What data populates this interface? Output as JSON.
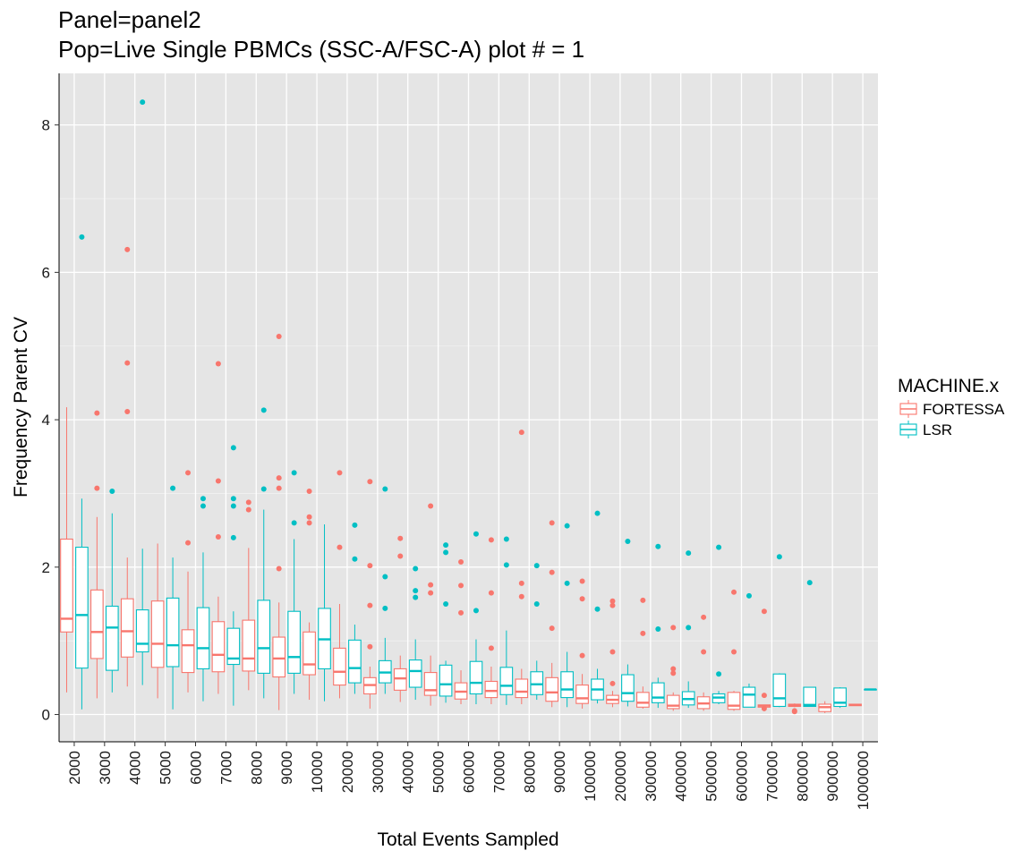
{
  "chart_data": {
    "type": "box",
    "title": "Panel=panel2",
    "subtitle": "Pop=Live Single PBMCs (SSC-A/FSC-A) plot # = 1",
    "xlabel": "Total Events Sampled",
    "ylabel": "Frequency Parent CV",
    "ylim": [
      -0.37,
      8.7
    ],
    "yticks": [
      0,
      2,
      4,
      6,
      8
    ],
    "grid": true,
    "legend": {
      "title": "MACHINE.x",
      "position": "right"
    },
    "categories": [
      "2000",
      "3000",
      "4000",
      "5000",
      "6000",
      "7000",
      "8000",
      "9000",
      "10000",
      "20000",
      "30000",
      "40000",
      "50000",
      "60000",
      "70000",
      "80000",
      "90000",
      "100000",
      "200000",
      "300000",
      "400000",
      "500000",
      "600000",
      "700000",
      "800000",
      "900000",
      "1000000"
    ],
    "series": [
      {
        "name": "FORTESSA",
        "color": "#F8766D",
        "boxes": [
          {
            "min": 0.3,
            "q1": 1.12,
            "median": 1.3,
            "q3": 2.38,
            "max": 4.17,
            "outliers": []
          },
          {
            "min": 0.22,
            "q1": 0.76,
            "median": 1.12,
            "q3": 1.69,
            "max": 2.68,
            "outliers": [
              3.07,
              4.09
            ]
          },
          {
            "min": 0.38,
            "q1": 0.78,
            "median": 1.13,
            "q3": 1.57,
            "max": 2.13,
            "outliers": [
              4.11,
              4.77,
              6.31
            ]
          },
          {
            "min": 0.22,
            "q1": 0.64,
            "median": 0.96,
            "q3": 1.54,
            "max": 2.32,
            "outliers": []
          },
          {
            "min": 0.3,
            "q1": 0.57,
            "median": 0.94,
            "q3": 1.15,
            "max": 1.94,
            "outliers": [
              2.33,
              3.28
            ]
          },
          {
            "min": 0.28,
            "q1": 0.58,
            "median": 0.81,
            "q3": 1.26,
            "max": 1.6,
            "outliers": [
              2.41,
              3.17,
              4.76
            ]
          },
          {
            "min": 0.33,
            "q1": 0.59,
            "median": 0.76,
            "q3": 1.28,
            "max": 2.26,
            "outliers": [
              2.78,
              2.88
            ]
          },
          {
            "min": 0.06,
            "q1": 0.51,
            "median": 0.76,
            "q3": 1.05,
            "max": 1.52,
            "outliers": [
              1.98,
              3.07,
              3.21,
              5.13
            ]
          },
          {
            "min": 0.2,
            "q1": 0.54,
            "median": 0.68,
            "q3": 1.12,
            "max": 1.25,
            "outliers": [
              2.6,
              2.68,
              3.03
            ]
          },
          {
            "min": 0.22,
            "q1": 0.4,
            "median": 0.58,
            "q3": 0.9,
            "max": 1.5,
            "outliers": [
              2.27,
              3.28
            ]
          },
          {
            "min": 0.08,
            "q1": 0.28,
            "median": 0.4,
            "q3": 0.5,
            "max": 0.65,
            "outliers": [
              0.92,
              1.48,
              2.02,
              3.16
            ]
          },
          {
            "min": 0.17,
            "q1": 0.33,
            "median": 0.49,
            "q3": 0.62,
            "max": 0.8,
            "outliers": [
              2.15,
              2.39
            ]
          },
          {
            "min": 0.12,
            "q1": 0.26,
            "median": 0.33,
            "q3": 0.57,
            "max": 0.8,
            "outliers": [
              1.65,
              1.76,
              2.83
            ]
          },
          {
            "min": 0.14,
            "q1": 0.21,
            "median": 0.31,
            "q3": 0.43,
            "max": 0.6,
            "outliers": [
              1.38,
              1.75,
              2.07
            ]
          },
          {
            "min": 0.14,
            "q1": 0.23,
            "median": 0.32,
            "q3": 0.45,
            "max": 0.65,
            "outliers": [
              0.9,
              1.65,
              2.37
            ]
          },
          {
            "min": 0.14,
            "q1": 0.23,
            "median": 0.31,
            "q3": 0.48,
            "max": 0.62,
            "outliers": [
              1.6,
              1.78,
              3.83
            ]
          },
          {
            "min": 0.1,
            "q1": 0.18,
            "median": 0.3,
            "q3": 0.5,
            "max": 0.7,
            "outliers": [
              1.17,
              1.93,
              2.6
            ]
          },
          {
            "min": 0.08,
            "q1": 0.15,
            "median": 0.22,
            "q3": 0.4,
            "max": 0.55,
            "outliers": [
              0.8,
              1.57,
              1.81
            ]
          },
          {
            "min": 0.1,
            "q1": 0.15,
            "median": 0.2,
            "q3": 0.26,
            "max": 0.32,
            "outliers": [
              0.42,
              0.85,
              1.48,
              1.54
            ]
          },
          {
            "min": 0.08,
            "q1": 0.1,
            "median": 0.16,
            "q3": 0.3,
            "max": 0.38,
            "outliers": [
              1.1,
              1.55
            ]
          },
          {
            "min": 0.05,
            "q1": 0.08,
            "median": 0.12,
            "q3": 0.26,
            "max": 0.3,
            "outliers": [
              0.56,
              0.62,
              1.18
            ]
          },
          {
            "min": 0.05,
            "q1": 0.08,
            "median": 0.15,
            "q3": 0.24,
            "max": 0.3,
            "outliers": [
              0.85,
              1.32
            ]
          },
          {
            "min": 0.05,
            "q1": 0.07,
            "median": 0.12,
            "q3": 0.3,
            "max": 0.32,
            "outliers": [
              0.85,
              1.66
            ]
          },
          {
            "min": 0.08,
            "q1": 0.1,
            "median": 0.12,
            "q3": 0.13,
            "max": 0.13,
            "outliers": [
              0.08,
              0.26,
              1.4
            ]
          },
          {
            "min": 0.1,
            "q1": 0.11,
            "median": 0.12,
            "q3": 0.14,
            "max": 0.15,
            "outliers": [
              0.04,
              0.05
            ]
          },
          {
            "min": 0.02,
            "q1": 0.04,
            "median": 0.1,
            "q3": 0.14,
            "max": 0.18,
            "outliers": []
          },
          {
            "min": 0.12,
            "q1": 0.12,
            "median": 0.13,
            "q3": 0.14,
            "max": 0.14,
            "outliers": []
          }
        ]
      },
      {
        "name": "LSR",
        "color": "#00BFC4",
        "boxes": [
          {
            "min": 0.07,
            "q1": 0.63,
            "median": 1.35,
            "q3": 2.27,
            "max": 2.93,
            "outliers": [
              6.48
            ]
          },
          {
            "min": 0.3,
            "q1": 0.6,
            "median": 1.18,
            "q3": 1.47,
            "max": 2.73,
            "outliers": [
              3.03
            ]
          },
          {
            "min": 0.4,
            "q1": 0.85,
            "median": 0.96,
            "q3": 1.42,
            "max": 2.25,
            "outliers": [
              8.31
            ]
          },
          {
            "min": 0.07,
            "q1": 0.65,
            "median": 0.94,
            "q3": 1.58,
            "max": 2.13,
            "outliers": [
              3.07
            ]
          },
          {
            "min": 0.18,
            "q1": 0.62,
            "median": 0.9,
            "q3": 1.45,
            "max": 2.2,
            "outliers": [
              2.83,
              2.93
            ]
          },
          {
            "min": 0.12,
            "q1": 0.68,
            "median": 0.76,
            "q3": 1.17,
            "max": 1.4,
            "outliers": [
              2.4,
              2.83,
              2.93,
              3.62
            ]
          },
          {
            "min": 0.22,
            "q1": 0.56,
            "median": 0.9,
            "q3": 1.55,
            "max": 2.78,
            "outliers": [
              3.06,
              4.13
            ]
          },
          {
            "min": 0.28,
            "q1": 0.56,
            "median": 0.78,
            "q3": 1.4,
            "max": 2.38,
            "outliers": [
              2.6,
              3.28
            ]
          },
          {
            "min": 0.18,
            "q1": 0.62,
            "median": 1.02,
            "q3": 1.44,
            "max": 2.58,
            "outliers": []
          },
          {
            "min": 0.28,
            "q1": 0.43,
            "median": 0.63,
            "q3": 1.01,
            "max": 1.22,
            "outliers": [
              2.11,
              2.57
            ]
          },
          {
            "min": 0.28,
            "q1": 0.43,
            "median": 0.57,
            "q3": 0.73,
            "max": 1.04,
            "outliers": [
              1.44,
              1.87,
              3.06
            ]
          },
          {
            "min": 0.2,
            "q1": 0.37,
            "median": 0.59,
            "q3": 0.74,
            "max": 1.02,
            "outliers": [
              1.59,
              1.68,
              1.98
            ]
          },
          {
            "min": 0.16,
            "q1": 0.25,
            "median": 0.41,
            "q3": 0.67,
            "max": 0.73,
            "outliers": [
              1.5,
              2.2,
              2.3
            ]
          },
          {
            "min": 0.14,
            "q1": 0.28,
            "median": 0.43,
            "q3": 0.72,
            "max": 1.02,
            "outliers": [
              1.41,
              2.45
            ]
          },
          {
            "min": 0.13,
            "q1": 0.27,
            "median": 0.39,
            "q3": 0.64,
            "max": 1.14,
            "outliers": [
              2.03,
              2.38
            ]
          },
          {
            "min": 0.2,
            "q1": 0.27,
            "median": 0.41,
            "q3": 0.58,
            "max": 0.73,
            "outliers": [
              1.5,
              2.02
            ]
          },
          {
            "min": 0.1,
            "q1": 0.23,
            "median": 0.34,
            "q3": 0.58,
            "max": 0.85,
            "outliers": [
              1.78,
              2.56
            ]
          },
          {
            "min": 0.15,
            "q1": 0.2,
            "median": 0.34,
            "q3": 0.48,
            "max": 0.62,
            "outliers": [
              1.43,
              2.73
            ]
          },
          {
            "min": 0.11,
            "q1": 0.18,
            "median": 0.29,
            "q3": 0.54,
            "max": 0.68,
            "outliers": [
              2.35
            ]
          },
          {
            "min": 0.09,
            "q1": 0.16,
            "median": 0.23,
            "q3": 0.43,
            "max": 0.5,
            "outliers": [
              1.16,
              2.28
            ]
          },
          {
            "min": 0.09,
            "q1": 0.13,
            "median": 0.21,
            "q3": 0.31,
            "max": 0.45,
            "outliers": [
              1.18,
              2.19
            ]
          },
          {
            "min": 0.14,
            "q1": 0.16,
            "median": 0.23,
            "q3": 0.28,
            "max": 0.32,
            "outliers": [
              0.55,
              2.27
            ]
          },
          {
            "min": 0.1,
            "q1": 0.1,
            "median": 0.27,
            "q3": 0.37,
            "max": 0.42,
            "outliers": [
              1.61
            ]
          },
          {
            "min": 0.1,
            "q1": 0.11,
            "median": 0.22,
            "q3": 0.55,
            "max": 0.56,
            "outliers": [
              2.14
            ]
          },
          {
            "min": 0.11,
            "q1": 0.11,
            "median": 0.13,
            "q3": 0.37,
            "max": 0.37,
            "outliers": [
              1.79
            ]
          },
          {
            "min": 0.09,
            "q1": 0.11,
            "median": 0.16,
            "q3": 0.36,
            "max": 0.37,
            "outliers": []
          },
          {
            "min": 0.34,
            "q1": 0.34,
            "median": 0.34,
            "q3": 0.34,
            "max": 0.34,
            "outliers": []
          }
        ]
      }
    ]
  }
}
